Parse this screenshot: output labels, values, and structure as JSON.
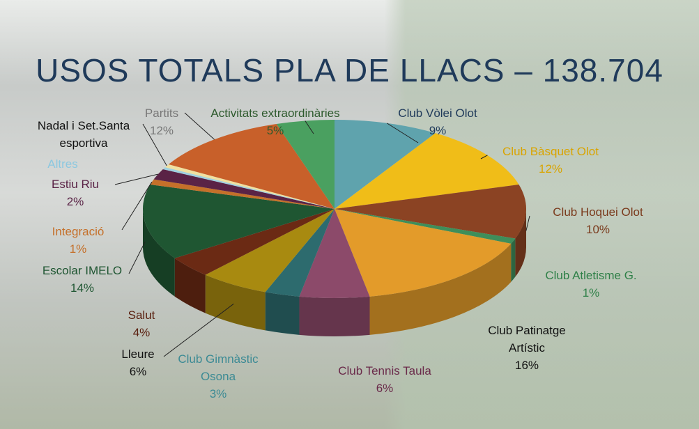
{
  "chart_data": {
    "type": "pie",
    "title": "USOS TOTALS PLA DE LLACS – 138.704",
    "categories": [
      "Club Vòlei Olot",
      "Club Bàsquet Olot",
      "Club Hoquei Olot",
      "Club Atletisme G.",
      "Club Patinatge Artístic",
      "Club Tennis Taula",
      "Club Gimnàstic Osona",
      "Lleure",
      "Salut",
      "Escolar IMELO",
      "Integració",
      "Estiu Riu",
      "Altres",
      "Nadal i Set.Santa esportiva",
      "Partits",
      "Activitats extraordinàries"
    ],
    "values": [
      9,
      12,
      10,
      1,
      16,
      6,
      3,
      6,
      4,
      14,
      1,
      2,
      0.4,
      0.6,
      12,
      5
    ],
    "value_labels": [
      "9%",
      "12%",
      "10%",
      "1%",
      "16%",
      "6%",
      "3%",
      "6%",
      "4%",
      "14%",
      "1%",
      "2%",
      null,
      null,
      "12%",
      "5%"
    ],
    "colors": [
      "#5fa3ad",
      "#f0bd18",
      "#8b4323",
      "#3e8e5a",
      "#e39b2a",
      "#8c4a6a",
      "#2d6b6e",
      "#a88a10",
      "#6b2a14",
      "#1f5632",
      "#c5702a",
      "#5a2346",
      "#9fd0e0",
      "#f0e0a0",
      "#c8602a",
      "#4aa060"
    ],
    "label_colors": [
      "#1f3a5a",
      "#d9a400",
      "#7a3a1c",
      "#2f8048",
      "#111111",
      "#6a2a4a",
      "#3b8a94",
      "#111111",
      "#5a2010",
      "#1f5632",
      "#c5702a",
      "#5a2346",
      "#8cc8e0",
      "#111111",
      "#777777",
      "#2d5a2d"
    ]
  }
}
